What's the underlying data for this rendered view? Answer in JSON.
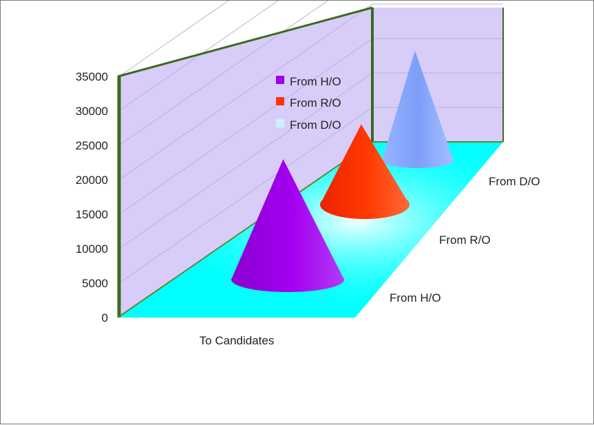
{
  "chart_data": {
    "type": "bar",
    "bar_shape": "cone",
    "view": "3d-deep",
    "categories": [
      "To Candidates"
    ],
    "series": [
      {
        "name": "From H/O",
        "values": [
          22500
        ],
        "color": "#9b00e6"
      },
      {
        "name": "From R/O",
        "values": [
          15000
        ],
        "color": "#ff3300"
      },
      {
        "name": "From D/O",
        "values": [
          20500
        ],
        "color": "#88aaff"
      }
    ],
    "depth_labels": [
      "From H/O",
      "From R/O",
      "From D/O"
    ],
    "y_ticks": [
      "0",
      "5000",
      "10000",
      "15000",
      "20000",
      "25000",
      "30000",
      "35000"
    ],
    "ylim": [
      0,
      35000
    ],
    "grid": true,
    "legend": "inside-top-center",
    "colors": {
      "wall": "#d8ccf8",
      "floor": "#00ffff",
      "frame": "#3a6a20",
      "gridline": "#b8b0d8"
    }
  }
}
